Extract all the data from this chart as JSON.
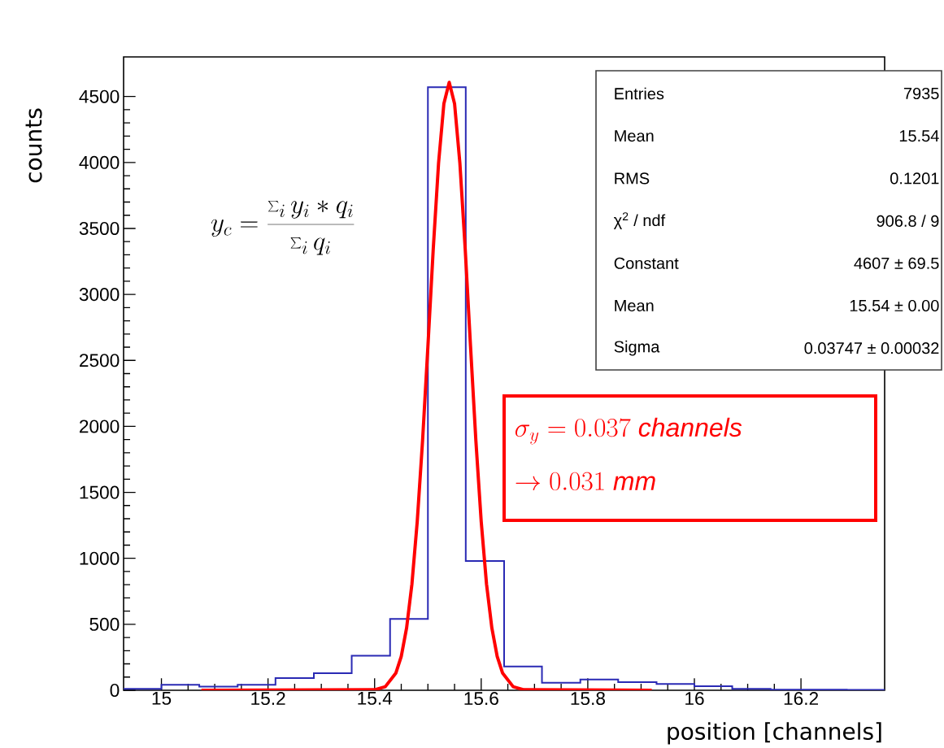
{
  "chart_data": {
    "type": "histogram",
    "xlabel": "position [channels]",
    "ylabel": "counts",
    "bins": [
      14.929,
      15.0,
      15.071,
      15.143,
      15.214,
      15.286,
      15.357,
      15.429,
      15.5,
      15.571,
      15.643,
      15.714,
      15.786,
      15.857,
      15.929,
      16.0,
      16.071,
      16.143,
      16.214,
      16.286,
      16.357
    ],
    "values": [
      10,
      42,
      27,
      42,
      92,
      130,
      262,
      540,
      4570,
      980,
      180,
      57,
      82,
      62,
      47,
      31,
      10,
      5,
      5,
      3
    ],
    "color": "#2a2ab4",
    "series": [
      {
        "type": "line",
        "color": "#ff0000",
        "x": [
          15.075,
          15.4,
          15.42,
          15.44,
          15.45,
          15.46,
          15.47,
          15.48,
          15.49,
          15.5,
          15.51,
          15.52,
          15.53,
          15.54,
          15.55,
          15.56,
          15.57,
          15.58,
          15.59,
          15.6,
          15.61,
          15.62,
          15.63,
          15.64,
          15.66,
          15.68,
          15.92
        ],
        "values": [
          0,
          4,
          27,
          131,
          257,
          472,
          804,
          1279,
          1892,
          2606,
          3344,
          3995,
          4446,
          4607,
          4446,
          3995,
          3344,
          2606,
          1892,
          1279,
          804,
          472,
          257,
          131,
          27,
          4,
          0
        ]
      }
    ],
    "xlim": [
      14.929,
      16.357
    ],
    "ylim": [
      0,
      4800
    ],
    "xticks": [
      15,
      15.2,
      15.4,
      15.6,
      15.8,
      16,
      16.2
    ],
    "yticks": [
      0,
      500,
      1000,
      1500,
      2000,
      2500,
      3000,
      3500,
      4000,
      4500
    ],
    "grid": false,
    "annotations": [
      "y_c = \\frac{\\sum_i y_i * q_i}{\\sum_i q_i}",
      "\\sigma_y = 0.037\\ \\mathit{channels}",
      "\\rightarrow 0.031\\ \\mathit{mm}",
      "Entries",
      "7935",
      "Mean",
      "15.54",
      "RMS",
      "0.1201",
      "χ$^{2}$ / ndf",
      "906.8 / 9",
      "Constant",
      "4607 ± 69.5",
      "Mean",
      "15.54 ± 0.00",
      "Sigma",
      "0.03747 ± 0.00032"
    ]
  }
}
